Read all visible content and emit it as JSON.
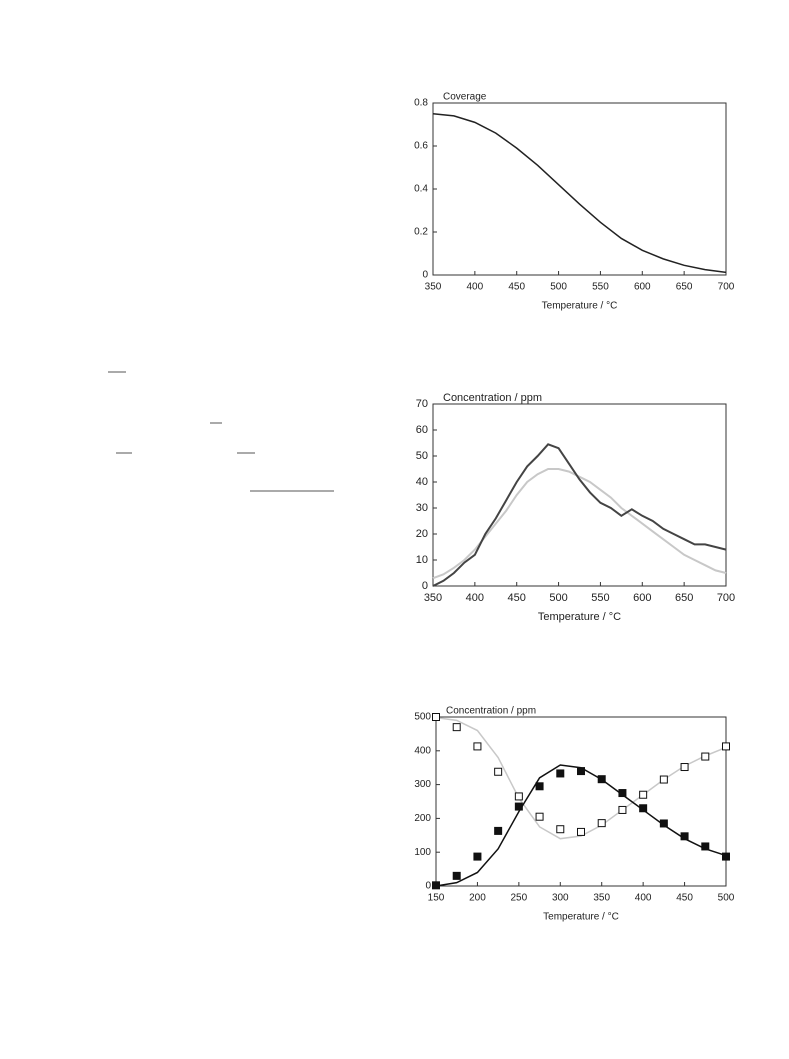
{
  "chart_data": [
    {
      "type": "line",
      "title": "Coverage",
      "xlabel": "Temperature / °C",
      "x": [
        350,
        375,
        400,
        425,
        450,
        475,
        500,
        525,
        550,
        575,
        600,
        625,
        650,
        675,
        700
      ],
      "series": [
        {
          "color": "#222222",
          "values": [
            0.75,
            0.74,
            0.71,
            0.66,
            0.59,
            0.51,
            0.42,
            0.33,
            0.245,
            0.17,
            0.115,
            0.075,
            0.045,
            0.025,
            0.012
          ]
        }
      ],
      "xlim": [
        350,
        700
      ],
      "xticks": [
        350,
        400,
        450,
        500,
        550,
        600,
        650,
        700
      ],
      "ylim": [
        0,
        0.8
      ],
      "yticks": [
        0,
        0.2,
        0.4,
        0.6,
        0.8
      ]
    },
    {
      "type": "line",
      "title": "Concentration / ppm",
      "xlabel": "Temperature / °C",
      "x": [
        350,
        362.5,
        375,
        387.5,
        400,
        412.5,
        425,
        437.5,
        450,
        462.5,
        475,
        487.5,
        500,
        512.5,
        525,
        537.5,
        550,
        562.5,
        575,
        587.5,
        600,
        612.5,
        625,
        637.5,
        650,
        662.5,
        675,
        687.5,
        700
      ],
      "series": [
        {
          "color": "#c8c8c8",
          "values": [
            3,
            4.5,
            7,
            10,
            14,
            19,
            24,
            29,
            35,
            40,
            43,
            45,
            45,
            44,
            42,
            40,
            37,
            34,
            30,
            27,
            24,
            21,
            18,
            15,
            12,
            10,
            8,
            6,
            5
          ]
        },
        {
          "color": "#444444",
          "values": [
            0,
            2,
            5,
            9,
            12,
            20,
            26,
            33,
            40,
            46,
            50,
            54.5,
            53,
            47,
            41,
            36,
            32,
            30,
            27,
            29.5,
            27,
            25,
            22,
            20,
            18,
            16,
            16,
            15,
            14
          ]
        }
      ],
      "xlim": [
        350,
        700
      ],
      "xticks": [
        350,
        400,
        450,
        500,
        550,
        600,
        650,
        700
      ],
      "ylim": [
        0,
        70
      ],
      "yticks": [
        0,
        10,
        20,
        30,
        40,
        50,
        60,
        70
      ]
    },
    {
      "type": "line",
      "title": "Concentration / ppm",
      "xlabel": "Temperature / °C",
      "x": [
        150,
        175,
        200,
        225,
        250,
        275,
        300,
        325,
        350,
        375,
        400,
        425,
        450,
        475,
        500
      ],
      "series": [
        {
          "type": "line",
          "color": "#c8c8c8",
          "values": [
            498,
            490,
            460,
            380,
            260,
            175,
            140,
            148,
            180,
            225,
            270,
            315,
            355,
            385,
            410
          ]
        },
        {
          "type": "line",
          "color": "#111111",
          "values": [
            0,
            10,
            40,
            110,
            220,
            320,
            358,
            350,
            315,
            270,
            225,
            180,
            140,
            110,
            90
          ]
        },
        {
          "type": "scatter",
          "color": "#111111",
          "marker_fill": "#ffffff",
          "values": [
            500,
            470,
            413,
            338,
            265,
            205,
            168,
            160,
            186,
            225,
            270,
            315,
            352,
            383,
            413
          ]
        },
        {
          "type": "scatter",
          "color": "#111111",
          "marker_fill": "#111111",
          "values": [
            2,
            30,
            87,
            163,
            235,
            295,
            333,
            340,
            316,
            275,
            230,
            185,
            147,
            117,
            87
          ]
        }
      ],
      "xlim": [
        150,
        500
      ],
      "xticks": [
        150,
        200,
        250,
        300,
        350,
        400,
        450,
        500
      ],
      "ylim": [
        0,
        500
      ],
      "yticks": [
        0,
        100,
        200,
        300,
        400,
        500
      ]
    }
  ]
}
